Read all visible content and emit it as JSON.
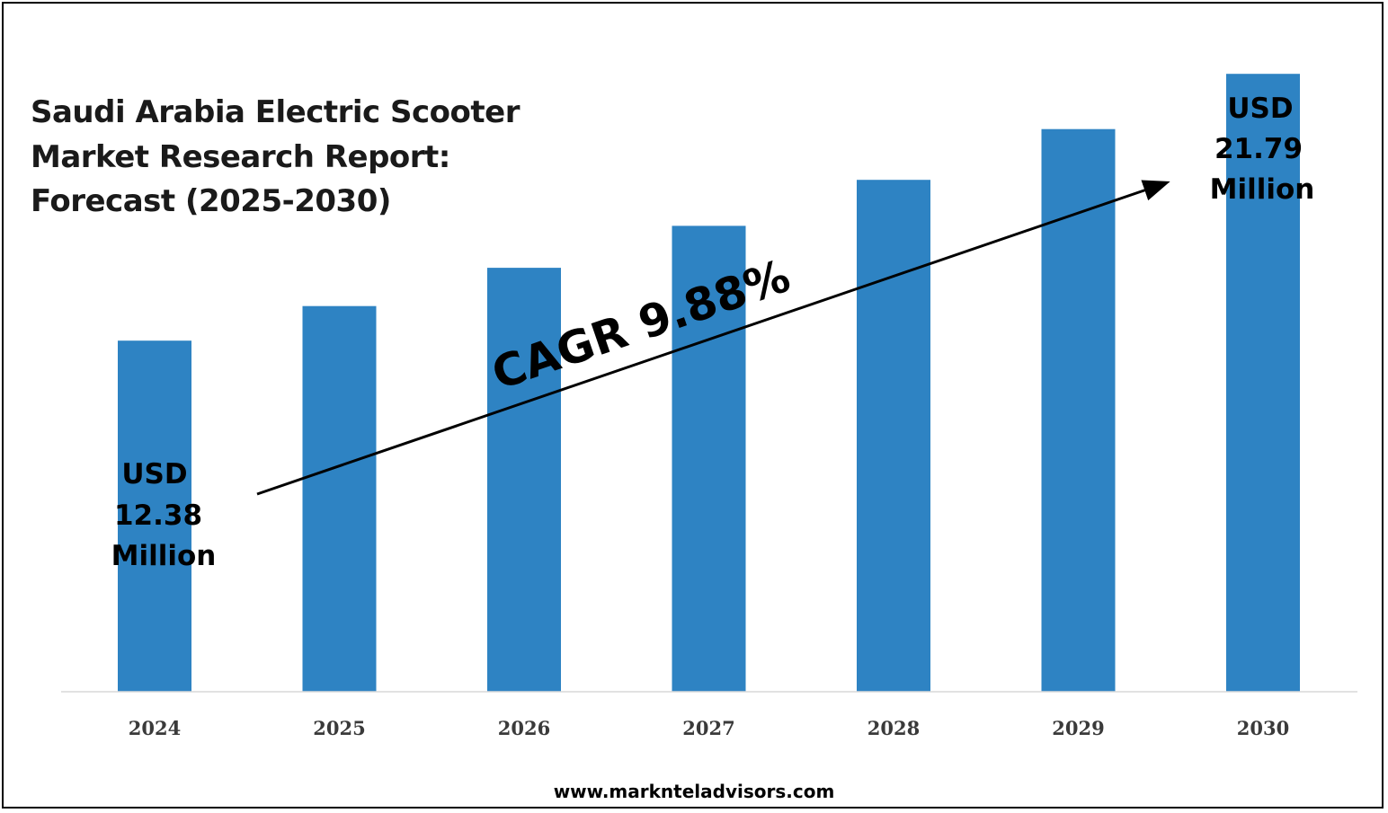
{
  "chart_data": {
    "type": "bar",
    "title_lines": [
      "Saudi Arabia Electric Scooter",
      "Market Research Report:",
      "Forecast (2025-2030)"
    ],
    "categories": [
      "2024",
      "2025",
      "2026",
      "2027",
      "2028",
      "2029",
      "2030"
    ],
    "values": [
      12.38,
      13.6,
      14.95,
      16.43,
      18.05,
      19.84,
      21.79
    ],
    "bar_color": "#2e83c3",
    "ylim": [
      0,
      23
    ],
    "grid": false,
    "annotations": {
      "start_label": [
        "USD",
        "12.38",
        "Million"
      ],
      "end_label": [
        "USD",
        "21.79",
        "Million"
      ],
      "cagr": "CAGR 9.88%"
    }
  },
  "footer": {
    "website": "www.marknteladvisors.com"
  }
}
